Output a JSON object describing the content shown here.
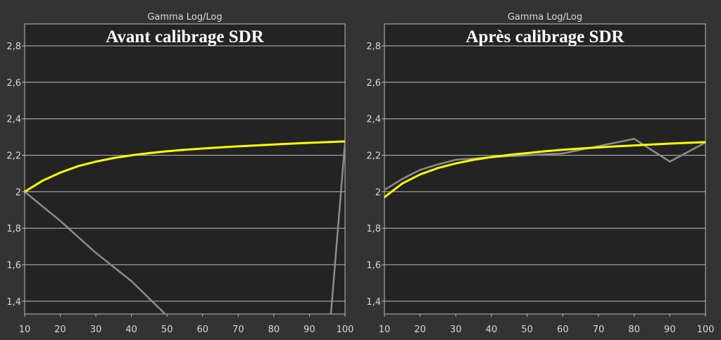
{
  "chart_data": [
    {
      "type": "line",
      "title": "Gamma Log/Log",
      "overlay_title": "Avant calibrage SDR",
      "x_ticks": [
        10,
        20,
        30,
        40,
        50,
        60,
        70,
        80,
        90,
        100
      ],
      "y_ticks": [
        "1,4",
        "1,6",
        "1,8",
        "2",
        "2,2",
        "2,4",
        "2,6",
        "2,8"
      ],
      "xlim": [
        10,
        100
      ],
      "ylim": [
        1.33,
        2.92
      ],
      "grid": true,
      "colors": {
        "target": "#ffff00",
        "measured": "#8c8c8c"
      },
      "series": [
        {
          "role": "target",
          "x": [
            10,
            15,
            20,
            25,
            30,
            35,
            40,
            45,
            50,
            55,
            60,
            65,
            70,
            75,
            80,
            85,
            90,
            95,
            100
          ],
          "y": [
            2.0,
            2.06,
            2.105,
            2.14,
            2.165,
            2.185,
            2.2,
            2.212,
            2.222,
            2.23,
            2.237,
            2.243,
            2.249,
            2.254,
            2.259,
            2.264,
            2.268,
            2.272,
            2.276
          ]
        },
        {
          "role": "measured",
          "x": [
            10,
            20,
            30,
            40,
            50,
            96,
            100
          ],
          "y": [
            2.0,
            1.84,
            1.665,
            1.51,
            1.32,
            1.32,
            2.27
          ]
        }
      ]
    },
    {
      "type": "line",
      "title": "Gamma Log/Log",
      "overlay_title": "Après calibrage SDR",
      "x_ticks": [
        10,
        20,
        30,
        40,
        50,
        60,
        70,
        80,
        90,
        100
      ],
      "y_ticks": [
        "1,4",
        "1,6",
        "1,8",
        "2",
        "2,2",
        "2,4",
        "2,6",
        "2,8"
      ],
      "xlim": [
        10,
        100
      ],
      "ylim": [
        1.33,
        2.92
      ],
      "grid": true,
      "colors": {
        "target": "#ffff00",
        "measured": "#8c8c8c"
      },
      "series": [
        {
          "role": "target",
          "x": [
            10,
            15,
            20,
            25,
            30,
            35,
            40,
            45,
            50,
            55,
            60,
            65,
            70,
            75,
            80,
            85,
            90,
            95,
            100
          ],
          "y": [
            1.97,
            2.045,
            2.095,
            2.13,
            2.155,
            2.175,
            2.19,
            2.202,
            2.212,
            2.222,
            2.23,
            2.237,
            2.243,
            2.249,
            2.254,
            2.259,
            2.264,
            2.268,
            2.272
          ]
        },
        {
          "role": "measured",
          "x": [
            10,
            15,
            20,
            25,
            30,
            40,
            50,
            60,
            70,
            80,
            90,
            100
          ],
          "y": [
            2.01,
            2.07,
            2.12,
            2.15,
            2.175,
            2.19,
            2.2,
            2.21,
            2.25,
            2.29,
            2.165,
            2.27
          ]
        }
      ]
    }
  ]
}
